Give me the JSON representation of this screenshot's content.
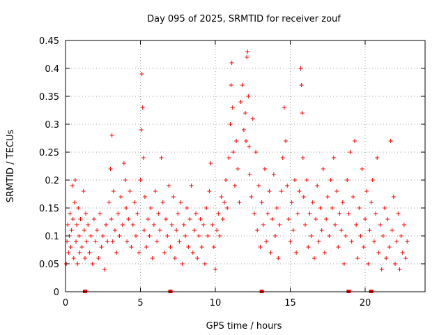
{
  "chart_data": {
    "type": "scatter",
    "title": "Day 095 of 2025, SRMTID for receiver zouf",
    "xlabel": "GPS time / hours",
    "ylabel": "SRMTID / TECUs",
    "xlim": [
      0,
      24
    ],
    "ylim": [
      0,
      0.45
    ],
    "x_ticks": [
      0,
      5,
      10,
      15,
      20
    ],
    "y_ticks": [
      0,
      0.05,
      0.1,
      0.15,
      0.2,
      0.25,
      0.3,
      0.35,
      0.4,
      0.45
    ],
    "x_tick_labels": [
      "0",
      "5",
      "10",
      "15",
      "20"
    ],
    "y_tick_labels": [
      "0",
      "0.05",
      "0.1",
      "0.15",
      "0.2",
      "0.25",
      "0.3",
      "0.35",
      "0.4",
      "0.45"
    ],
    "grid": true,
    "marker": "+",
    "color": "#ff0000",
    "zero_points_x": [
      1.3,
      7.0,
      13.1,
      18.9,
      20.4
    ],
    "series": [
      {
        "points": [
          [
            0.05,
            0.05
          ],
          [
            0.1,
            0.09
          ],
          [
            0.15,
            0.12
          ],
          [
            0.2,
            0.07
          ],
          [
            0.25,
            0.1
          ],
          [
            0.3,
            0.14
          ],
          [
            0.35,
            0.08
          ],
          [
            0.4,
            0.11
          ],
          [
            0.45,
            0.19
          ],
          [
            0.5,
            0.13
          ],
          [
            0.55,
            0.06
          ],
          [
            0.6,
            0.16
          ],
          [
            0.65,
            0.2
          ],
          [
            0.7,
            0.09
          ],
          [
            0.75,
            0.12
          ],
          [
            0.8,
            0.05
          ],
          [
            0.85,
            0.15
          ],
          [
            0.9,
            0.1
          ],
          [
            0.95,
            0.07
          ],
          [
            1.0,
            0.13
          ],
          [
            1.1,
            0.08
          ],
          [
            1.2,
            0.18
          ],
          [
            1.25,
            0.11
          ],
          [
            1.3,
            0.06
          ],
          [
            1.35,
            0.14
          ],
          [
            1.4,
            0.09
          ],
          [
            1.5,
            0.12
          ],
          [
            1.6,
            0.07
          ],
          [
            1.7,
            0.1
          ],
          [
            1.8,
            0.05
          ],
          [
            1.9,
            0.13
          ],
          [
            2.0,
            0.09
          ],
          [
            2.1,
            0.11
          ],
          [
            2.2,
            0.06
          ],
          [
            2.3,
            0.14
          ],
          [
            2.4,
            0.08
          ],
          [
            2.5,
            0.1
          ],
          [
            2.6,
            0.04
          ],
          [
            2.7,
            0.12
          ],
          [
            2.8,
            0.09
          ],
          [
            2.9,
            0.16
          ],
          [
            3.0,
            0.22
          ],
          [
            3.05,
            0.13
          ],
          [
            3.1,
            0.28
          ],
          [
            3.15,
            0.09
          ],
          [
            3.2,
            0.18
          ],
          [
            3.3,
            0.11
          ],
          [
            3.4,
            0.07
          ],
          [
            3.5,
            0.14
          ],
          [
            3.6,
            0.1
          ],
          [
            3.7,
            0.17
          ],
          [
            3.8,
            0.12
          ],
          [
            3.9,
            0.23
          ],
          [
            4.0,
            0.2
          ],
          [
            4.05,
            0.15
          ],
          [
            4.1,
            0.09
          ],
          [
            4.2,
            0.13
          ],
          [
            4.3,
            0.18
          ],
          [
            4.4,
            0.08
          ],
          [
            4.5,
            0.12
          ],
          [
            4.6,
            0.16
          ],
          [
            4.7,
            0.1
          ],
          [
            4.8,
            0.14
          ],
          [
            4.9,
            0.07
          ],
          [
            5.0,
            0.2
          ],
          [
            5.05,
            0.29
          ],
          [
            5.1,
            0.39
          ],
          [
            5.15,
            0.33
          ],
          [
            5.2,
            0.24
          ],
          [
            5.25,
            0.11
          ],
          [
            5.3,
            0.17
          ],
          [
            5.4,
            0.08
          ],
          [
            5.5,
            0.13
          ],
          [
            5.6,
            0.1
          ],
          [
            5.7,
            0.15
          ],
          [
            5.8,
            0.06
          ],
          [
            5.9,
            0.12
          ],
          [
            6.0,
            0.18
          ],
          [
            6.1,
            0.09
          ],
          [
            6.2,
            0.14
          ],
          [
            6.3,
            0.11
          ],
          [
            6.4,
            0.24
          ],
          [
            6.5,
            0.16
          ],
          [
            6.6,
            0.07
          ],
          [
            6.7,
            0.13
          ],
          [
            6.8,
            0.1
          ],
          [
            6.9,
            0.19
          ],
          [
            7.0,
            0.08
          ],
          [
            7.1,
            0.12
          ],
          [
            7.2,
            0.17
          ],
          [
            7.3,
            0.06
          ],
          [
            7.4,
            0.11
          ],
          [
            7.5,
            0.14
          ],
          [
            7.6,
            0.09
          ],
          [
            7.7,
            0.16
          ],
          [
            7.8,
            0.05
          ],
          [
            7.9,
            0.12
          ],
          [
            8.0,
            0.1
          ],
          [
            8.1,
            0.15
          ],
          [
            8.2,
            0.08
          ],
          [
            8.3,
            0.13
          ],
          [
            8.4,
            0.19
          ],
          [
            8.5,
            0.07
          ],
          [
            8.6,
            0.11
          ],
          [
            8.7,
            0.14
          ],
          [
            8.8,
            0.06
          ],
          [
            8.9,
            0.1
          ],
          [
            9.0,
            0.13
          ],
          [
            9.1,
            0.08
          ],
          [
            9.2,
            0.12
          ],
          [
            9.3,
            0.05
          ],
          [
            9.4,
            0.15
          ],
          [
            9.5,
            0.1
          ],
          [
            9.6,
            0.18
          ],
          [
            9.7,
            0.23
          ],
          [
            9.8,
            0.12
          ],
          [
            9.9,
            0.08
          ],
          [
            10.0,
            0.04
          ],
          [
            10.1,
            0.11
          ],
          [
            10.2,
            0.14
          ],
          [
            10.3,
            0.1
          ],
          [
            10.4,
            0.17
          ],
          [
            10.5,
            0.13
          ],
          [
            10.6,
            0.16
          ],
          [
            10.7,
            0.2
          ],
          [
            10.8,
            0.15
          ],
          [
            10.9,
            0.24
          ],
          [
            11.0,
            0.3
          ],
          [
            11.05,
            0.37
          ],
          [
            11.1,
            0.41
          ],
          [
            11.15,
            0.33
          ],
          [
            11.2,
            0.25
          ],
          [
            11.3,
            0.19
          ],
          [
            11.4,
            0.27
          ],
          [
            11.5,
            0.22
          ],
          [
            11.6,
            0.16
          ],
          [
            11.7,
            0.34
          ],
          [
            11.8,
            0.37
          ],
          [
            11.9,
            0.29
          ],
          [
            12.0,
            0.32
          ],
          [
            12.05,
            0.27
          ],
          [
            12.1,
            0.42
          ],
          [
            12.15,
            0.43
          ],
          [
            12.2,
            0.35
          ],
          [
            12.25,
            0.26
          ],
          [
            12.3,
            0.21
          ],
          [
            12.4,
            0.17
          ],
          [
            12.5,
            0.31
          ],
          [
            12.6,
            0.14
          ],
          [
            12.7,
            0.25
          ],
          [
            12.8,
            0.11
          ],
          [
            12.9,
            0.19
          ],
          [
            13.0,
            0.08
          ],
          [
            13.1,
            0.16
          ],
          [
            13.2,
            0.12
          ],
          [
            13.3,
            0.22
          ],
          [
            13.4,
            0.09
          ],
          [
            13.5,
            0.14
          ],
          [
            13.6,
            0.18
          ],
          [
            13.7,
            0.07
          ],
          [
            13.8,
            0.13
          ],
          [
            13.9,
            0.21
          ],
          [
            14.0,
            0.1
          ],
          [
            14.1,
            0.15
          ],
          [
            14.2,
            0.06
          ],
          [
            14.3,
            0.12
          ],
          [
            14.4,
            0.18
          ],
          [
            14.5,
            0.24
          ],
          [
            14.6,
            0.33
          ],
          [
            14.7,
            0.27
          ],
          [
            14.8,
            0.19
          ],
          [
            14.9,
            0.13
          ],
          [
            15.0,
            0.09
          ],
          [
            15.1,
            0.16
          ],
          [
            15.2,
            0.11
          ],
          [
            15.3,
            0.2
          ],
          [
            15.4,
            0.07
          ],
          [
            15.5,
            0.14
          ],
          [
            15.6,
            0.18
          ],
          [
            15.7,
            0.4
          ],
          [
            15.75,
            0.37
          ],
          [
            15.8,
            0.32
          ],
          [
            15.85,
            0.24
          ],
          [
            15.9,
            0.17
          ],
          [
            16.0,
            0.12
          ],
          [
            16.1,
            0.2
          ],
          [
            16.2,
            0.08
          ],
          [
            16.3,
            0.14
          ],
          [
            16.4,
            0.1
          ],
          [
            16.5,
            0.16
          ],
          [
            16.6,
            0.06
          ],
          [
            16.7,
            0.13
          ],
          [
            16.8,
            0.19
          ],
          [
            16.9,
            0.09
          ],
          [
            17.0,
            0.15
          ],
          [
            17.1,
            0.11
          ],
          [
            17.2,
            0.22
          ],
          [
            17.3,
            0.07
          ],
          [
            17.4,
            0.13
          ],
          [
            17.5,
            0.17
          ],
          [
            17.6,
            0.1
          ],
          [
            17.7,
            0.2
          ],
          [
            17.8,
            0.15
          ],
          [
            17.9,
            0.24
          ],
          [
            18.0,
            0.12
          ],
          [
            18.1,
            0.18
          ],
          [
            18.2,
            0.08
          ],
          [
            18.3,
            0.14
          ],
          [
            18.4,
            0.11
          ],
          [
            18.5,
            0.16
          ],
          [
            18.6,
            0.05
          ],
          [
            18.7,
            0.1
          ],
          [
            18.8,
            0.2
          ],
          [
            18.9,
            0.14
          ],
          [
            19.0,
            0.25
          ],
          [
            19.1,
            0.09
          ],
          [
            19.2,
            0.17
          ],
          [
            19.3,
            0.27
          ],
          [
            19.4,
            0.12
          ],
          [
            19.5,
            0.06
          ],
          [
            19.6,
            0.15
          ],
          [
            19.7,
            0.1
          ],
          [
            19.8,
            0.22
          ],
          [
            19.9,
            0.08
          ],
          [
            20.0,
            0.13
          ],
          [
            20.1,
            0.18
          ],
          [
            20.2,
            0.05
          ],
          [
            20.3,
            0.11
          ],
          [
            20.4,
            0.16
          ],
          [
            20.5,
            0.2
          ],
          [
            20.6,
            0.09
          ],
          [
            20.7,
            0.14
          ],
          [
            20.8,
            0.24
          ],
          [
            20.9,
            0.07
          ],
          [
            21.0,
            0.12
          ],
          [
            21.1,
            0.04
          ],
          [
            21.2,
            0.1
          ],
          [
            21.3,
            0.15
          ],
          [
            21.4,
            0.06
          ],
          [
            21.5,
            0.13
          ],
          [
            21.6,
            0.08
          ],
          [
            21.7,
            0.27
          ],
          [
            21.8,
            0.11
          ],
          [
            21.9,
            0.17
          ],
          [
            22.0,
            0.05
          ],
          [
            22.1,
            0.09
          ],
          [
            22.2,
            0.14
          ],
          [
            22.3,
            0.04
          ],
          [
            22.4,
            0.1
          ],
          [
            22.5,
            0.07
          ],
          [
            22.6,
            0.12
          ],
          [
            22.7,
            0.06
          ],
          [
            22.8,
            0.09
          ]
        ]
      }
    ]
  }
}
